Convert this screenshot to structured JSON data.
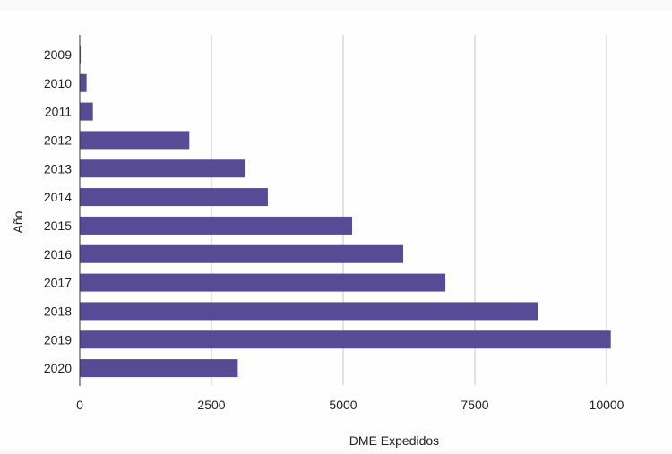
{
  "chart_data": {
    "type": "bar",
    "orientation": "horizontal",
    "categories": [
      "2009",
      "2010",
      "2011",
      "2012",
      "2013",
      "2014",
      "2015",
      "2016",
      "2017",
      "2018",
      "2019",
      "2020"
    ],
    "values": [
      10,
      130,
      250,
      2080,
      3130,
      3570,
      5170,
      6140,
      6940,
      8700,
      10080,
      3000
    ],
    "xlabel": "DME Expedidos",
    "ylabel": "Año",
    "xlim": [
      0,
      10500
    ],
    "xticks": [
      "0",
      "2500",
      "5000",
      "7500",
      "10000"
    ],
    "grid": true,
    "legend": "none"
  },
  "colors": {
    "bar": "#574b96",
    "gridline": "#c8c8c8",
    "axis": "#333333",
    "background": "#f9f9f9"
  }
}
